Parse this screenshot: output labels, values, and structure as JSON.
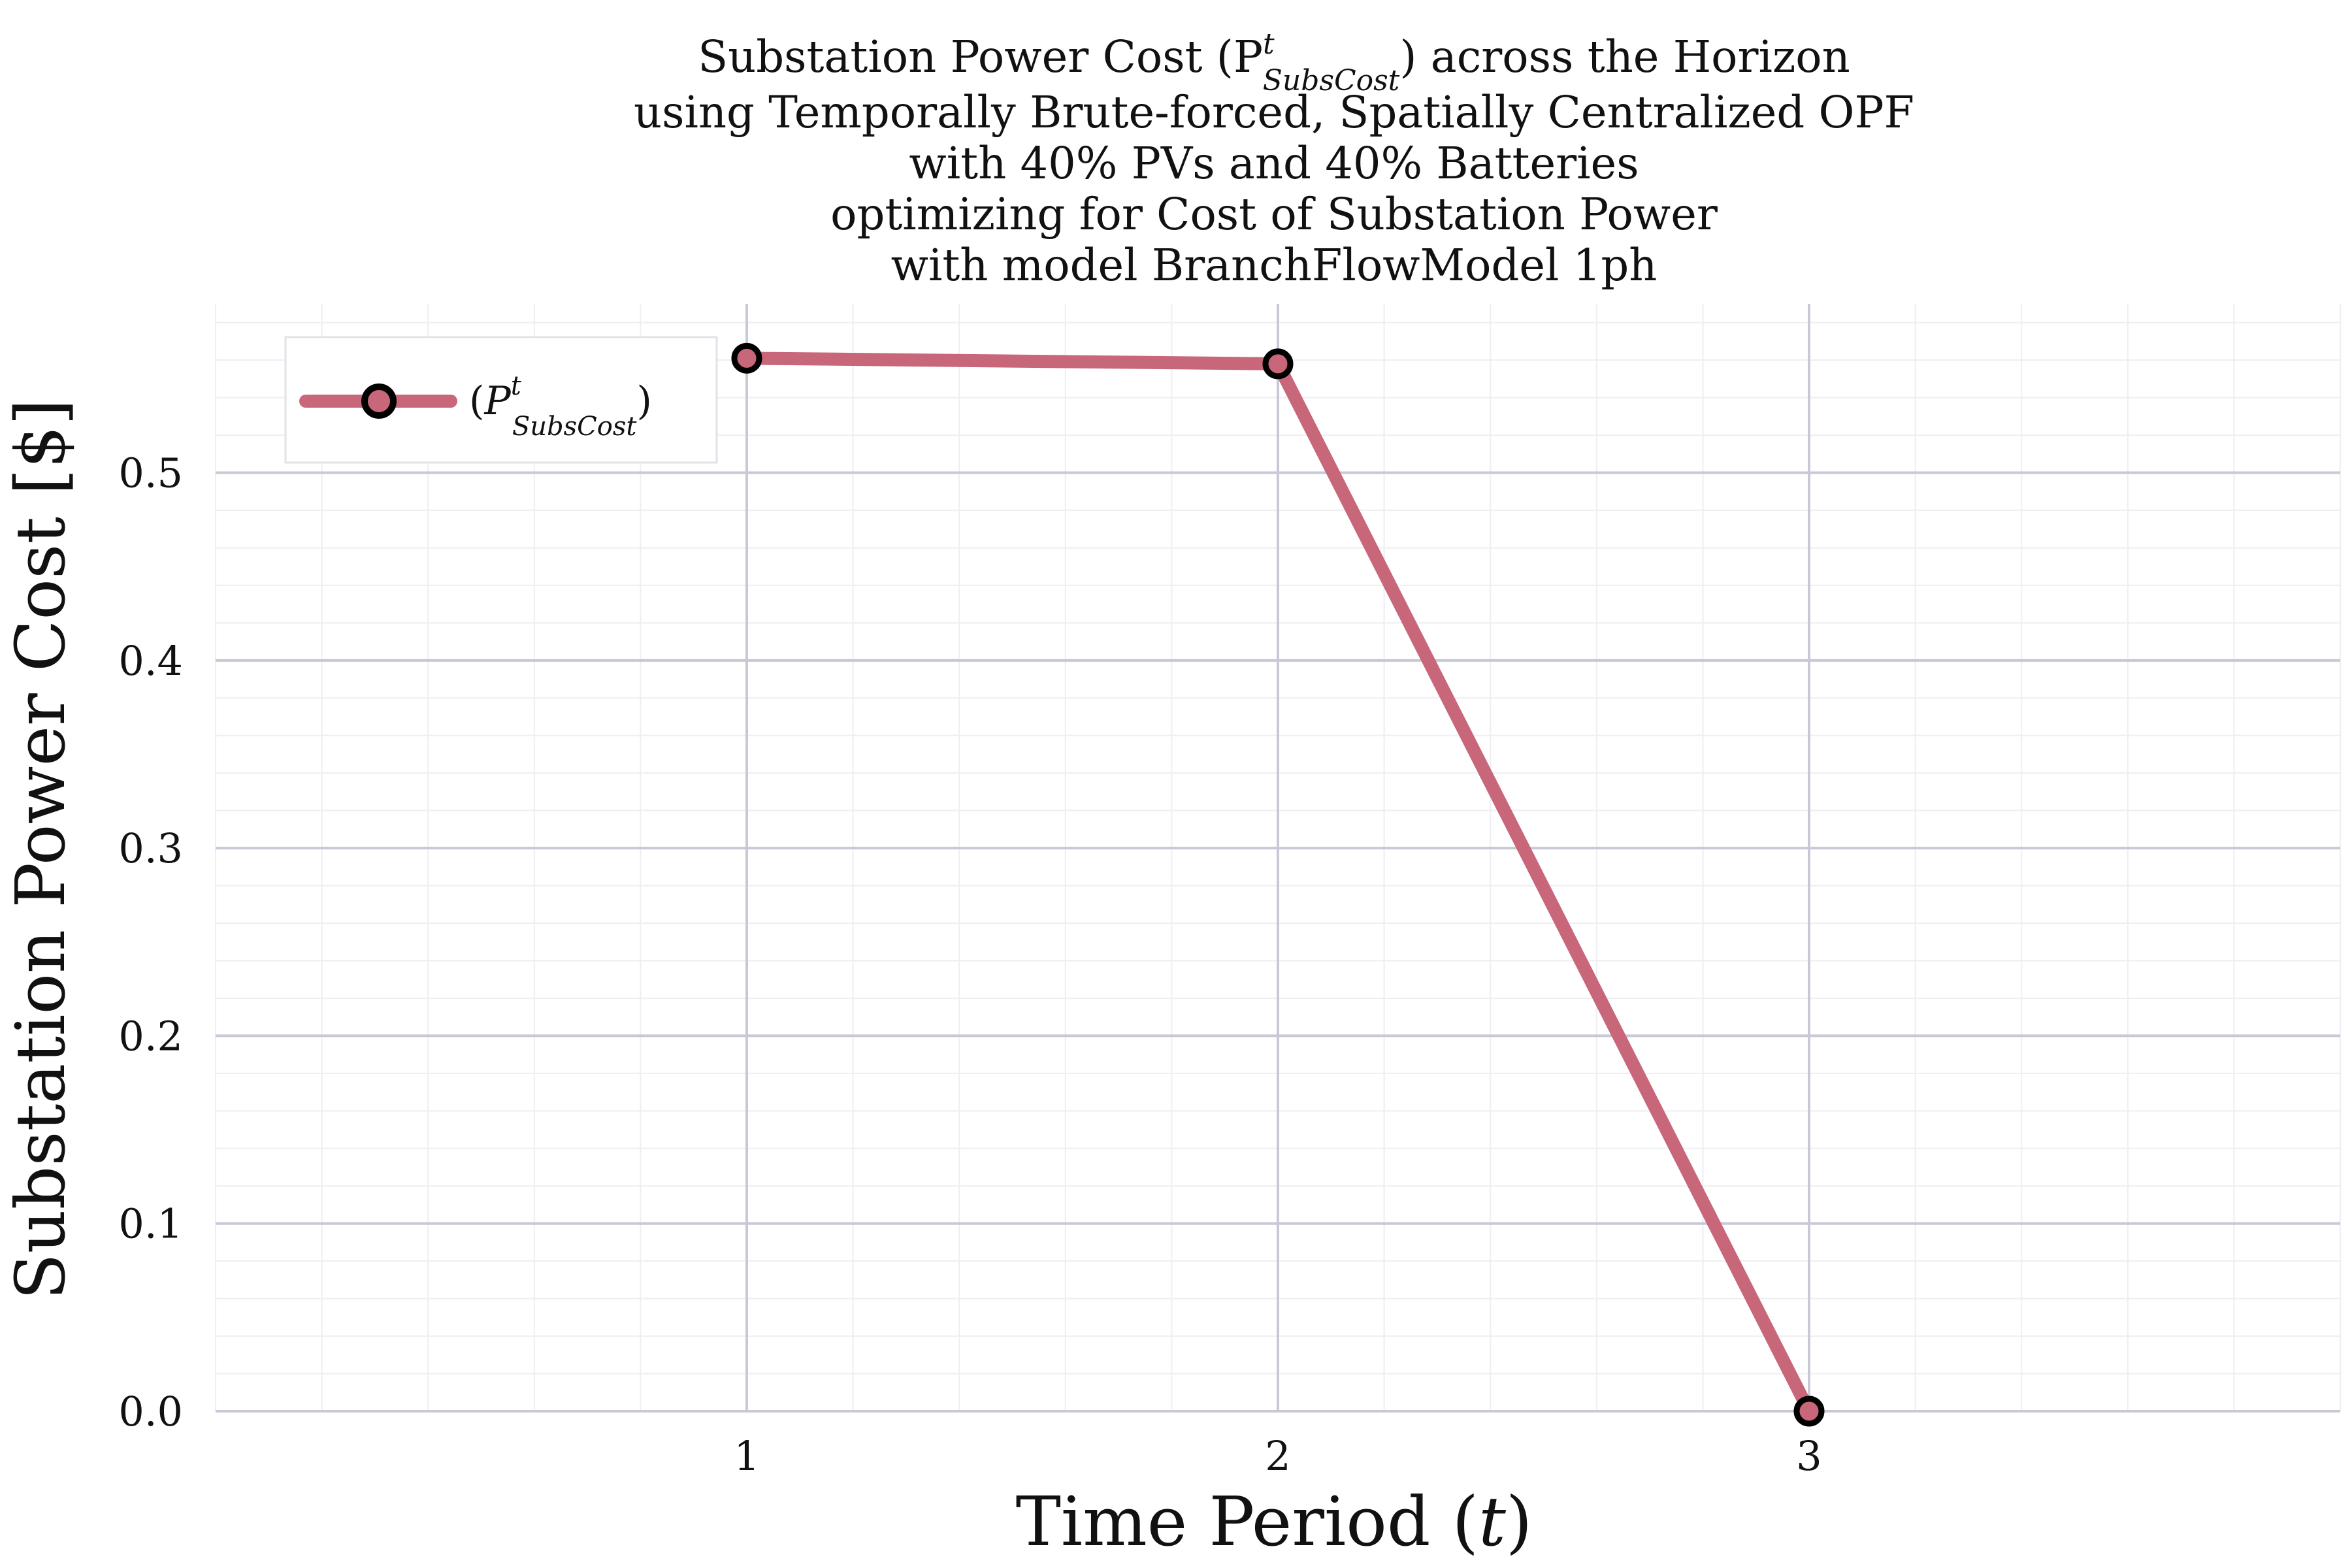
{
  "chart_data": {
    "type": "line",
    "title_lines": [
      "Substation Power Cost (P",
      "using Temporally Brute-forced, Spatially Centralized OPF",
      "with 40% PVs and 40% Batteries",
      "optimizing for Cost of Substation Power",
      "with model BranchFlowModel 1ph"
    ],
    "title_symbol": {
      "base": "P",
      "superscript": "t",
      "subscript": "SubsCost",
      "suffix": ") across the Horizon"
    },
    "xlabel_prefix": "Time Period (",
    "xlabel_var": "t",
    "xlabel_suffix": ")",
    "ylabel": "Substation Power Cost [$]",
    "x": [
      1,
      2,
      3
    ],
    "series": [
      {
        "name_prefix": "(",
        "name_base": "P",
        "name_superscript": "t",
        "name_subscript": "SubsCost",
        "name_suffix": ")",
        "values": [
          0.561,
          0.558,
          0.0
        ],
        "color": "#c8667a",
        "marker": "circle"
      }
    ],
    "xlim": [
      0,
      4
    ],
    "ylim": [
      0,
      0.59
    ],
    "xticks": [
      {
        "value": 1,
        "label": "1"
      },
      {
        "value": 2,
        "label": "2"
      },
      {
        "value": 3,
        "label": "3"
      }
    ],
    "yticks": [
      {
        "value": 0.0,
        "label": "0.0"
      },
      {
        "value": 0.1,
        "label": "0.1"
      },
      {
        "value": 0.2,
        "label": "0.2"
      },
      {
        "value": 0.3,
        "label": "0.3"
      },
      {
        "value": 0.4,
        "label": "0.4"
      },
      {
        "value": 0.5,
        "label": "0.5"
      }
    ],
    "grid": true,
    "minor_grid": true,
    "legend_placement": "top-left",
    "colors": {
      "major_grid": "#c9c8d6",
      "minor_grid": "#eeeef3",
      "marker_edge": "#000000"
    }
  }
}
